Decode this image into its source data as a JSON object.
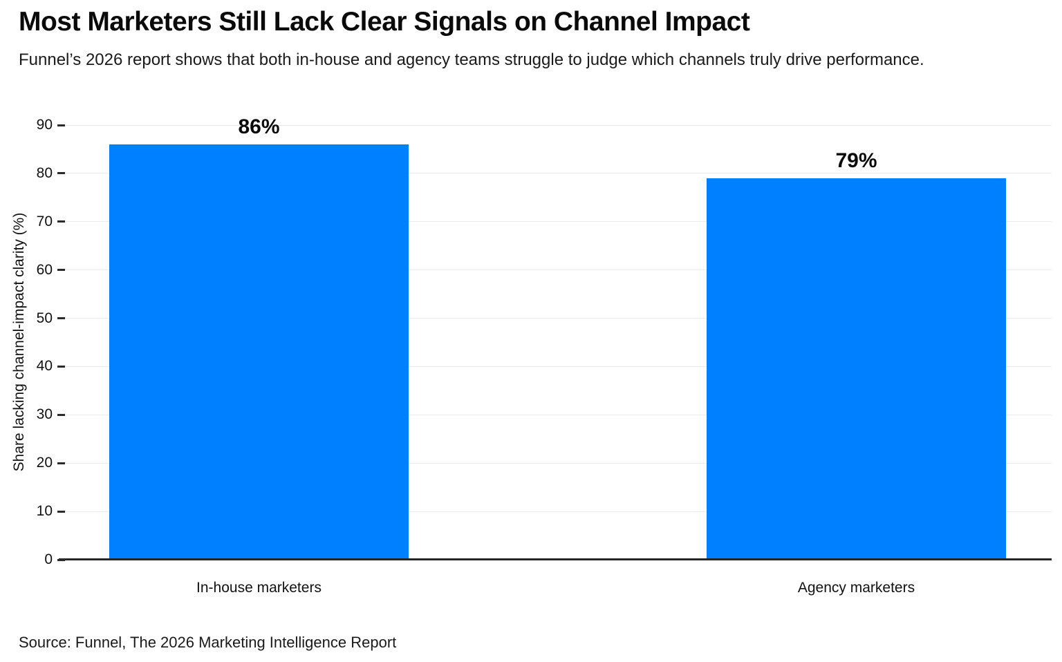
{
  "header": {
    "title": "Most Marketers Still Lack Clear Signals on Channel Impact",
    "subtitle": "Funnel’s 2026 report shows that both in-house and agency teams struggle to judge which channels truly drive performance."
  },
  "chart_data": {
    "type": "bar",
    "title": "Most Marketers Still Lack Clear Signals on Channel Impact",
    "subtitle": "Funnel’s 2026 report shows that both in-house and agency teams struggle to judge which channels truly drive performance.",
    "categories": [
      "In-house marketers",
      "Agency marketers"
    ],
    "values": [
      86,
      79
    ],
    "value_labels": [
      "86%",
      "79%"
    ],
    "xlabel": "",
    "ylabel": "Share lacking channel-impact clarity (%)",
    "yticks": [
      0,
      10,
      20,
      30,
      40,
      50,
      60,
      70,
      80,
      90
    ],
    "ylim": [
      0,
      90
    ],
    "grid": "horizontal-light",
    "legend": "none"
  },
  "colors": {
    "bar": "#007fff",
    "axis": "#262626",
    "grid": "#ececec",
    "title_text": "#0a0a0a",
    "body_text": "#1a1a1a"
  },
  "footer": {
    "source": "Source: Funnel, The 2026 Marketing Intelligence Report"
  }
}
